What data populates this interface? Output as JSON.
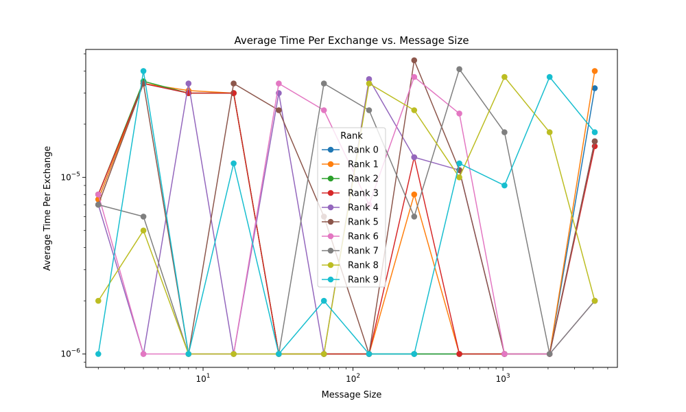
{
  "chart_data": {
    "type": "line",
    "title": "Average Time Per Exchange vs. Message Size",
    "xlabel": "Message Size",
    "ylabel": "Average Time Per Exchange",
    "xscale": "log",
    "yscale": "log",
    "xlim": [
      1.65,
      5800
    ],
    "ylim": [
      8.4e-07,
      5.3e-05
    ],
    "x": [
      2,
      4,
      8,
      16,
      32,
      64,
      128,
      256,
      512,
      1024,
      2048,
      4096
    ],
    "x_ticks": [
      {
        "value": 10,
        "base": "10",
        "exp": "1"
      },
      {
        "value": 100,
        "base": "10",
        "exp": "2"
      },
      {
        "value": 1000,
        "base": "10",
        "exp": "3"
      }
    ],
    "y_ticks": [
      {
        "value": 1e-06,
        "base": "10",
        "exp": "−6"
      },
      {
        "value": 1e-05,
        "base": "10",
        "exp": "−5"
      }
    ],
    "grid": false,
    "legend": {
      "title": "Rank",
      "placement": "center"
    },
    "series": [
      {
        "name": "Rank 0",
        "color": "#1f77b4",
        "values": [
          7.5e-06,
          3.4e-05,
          3e-05,
          3e-05,
          1e-06,
          1e-06,
          1e-06,
          1e-06,
          1e-06,
          1e-06,
          1e-06,
          3.2e-05
        ]
      },
      {
        "name": "Rank 1",
        "color": "#ff7f0e",
        "values": [
          7.5e-06,
          3.4e-05,
          3.1e-05,
          3e-05,
          1e-06,
          1e-06,
          1e-06,
          8e-06,
          1e-06,
          1e-06,
          1e-06,
          4e-05
        ]
      },
      {
        "name": "Rank 2",
        "color": "#2ca02c",
        "values": [
          8e-06,
          3.5e-05,
          3e-05,
          3e-05,
          1e-06,
          1e-06,
          1e-06,
          1e-06,
          1e-06,
          1e-06,
          1e-06,
          1.6e-05
        ]
      },
      {
        "name": "Rank 3",
        "color": "#d62728",
        "values": [
          8e-06,
          3.4e-05,
          3e-05,
          3e-05,
          1e-06,
          1e-06,
          1e-06,
          1.3e-05,
          1e-06,
          1e-06,
          1e-06,
          1.5e-05
        ]
      },
      {
        "name": "Rank 4",
        "color": "#9467bd",
        "values": [
          7e-06,
          1e-06,
          3.4e-05,
          1e-06,
          3e-05,
          1e-06,
          3.6e-05,
          1.3e-05,
          1.1e-05,
          1e-06,
          1e-06,
          1.6e-05
        ]
      },
      {
        "name": "Rank 5",
        "color": "#8c564b",
        "values": [
          7e-06,
          3.4e-05,
          1e-06,
          3.4e-05,
          2.4e-05,
          6e-06,
          1e-06,
          4.6e-05,
          1.1e-05,
          1e-06,
          1e-06,
          1.6e-05
        ]
      },
      {
        "name": "Rank 6",
        "color": "#e377c2",
        "values": [
          8e-06,
          1e-06,
          1e-06,
          1e-06,
          3.4e-05,
          2.4e-05,
          7e-06,
          3.7e-05,
          2.3e-05,
          1e-06,
          1e-06,
          2e-06
        ]
      },
      {
        "name": "Rank 7",
        "color": "#7f7f7f",
        "values": [
          7e-06,
          6e-06,
          1e-06,
          1e-06,
          1e-06,
          3.4e-05,
          2.4e-05,
          6e-06,
          4.1e-05,
          1.8e-05,
          1e-06,
          2e-06
        ]
      },
      {
        "name": "Rank 8",
        "color": "#bcbd22",
        "values": [
          2e-06,
          5e-06,
          1e-06,
          1e-06,
          1e-06,
          1e-06,
          3.4e-05,
          2.4e-05,
          1e-05,
          3.7e-05,
          1.8e-05,
          2e-06
        ]
      },
      {
        "name": "Rank 9",
        "color": "#17becf",
        "values": [
          1e-06,
          4e-05,
          1e-06,
          1.2e-05,
          1e-06,
          2e-06,
          1e-06,
          1e-06,
          1.2e-05,
          9e-06,
          3.7e-05,
          1.8e-05
        ]
      }
    ]
  }
}
